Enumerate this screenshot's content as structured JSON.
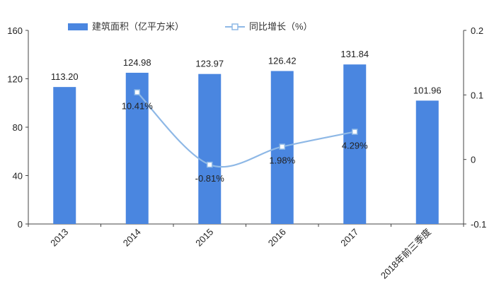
{
  "chart_data": {
    "type": "bar",
    "categories": [
      "2013",
      "2014",
      "2015",
      "2016",
      "2017",
      "2018年前三季度"
    ],
    "series": [
      {
        "name": "建筑面积（亿平方米）",
        "type": "bar",
        "axis": "left",
        "color": "#4a86e0",
        "values": [
          113.2,
          124.98,
          123.97,
          126.42,
          131.84,
          101.96
        ],
        "labels": [
          "113.20",
          "124.98",
          "123.97",
          "126.42",
          "131.84",
          "101.96"
        ]
      },
      {
        "name": "同比增长（%）",
        "type": "line",
        "axis": "right",
        "color": "#8eb8e6",
        "smooth": true,
        "marker": "square",
        "values": [
          null,
          0.1041,
          -0.0081,
          0.0198,
          0.0429,
          null
        ],
        "labels": [
          "",
          "10.41%",
          "-0.81%",
          "1.98%",
          "4.29%",
          ""
        ]
      }
    ],
    "y_left": {
      "ylim": [
        0,
        160
      ],
      "ticks": [
        "0",
        "40",
        "80",
        "120",
        "160"
      ]
    },
    "y_right": {
      "ylim": [
        -0.1,
        0.2
      ],
      "ticks": [
        "-0.1",
        "0",
        "0.1",
        "0.2"
      ]
    },
    "legend": {
      "position": "top"
    },
    "grid": false
  }
}
